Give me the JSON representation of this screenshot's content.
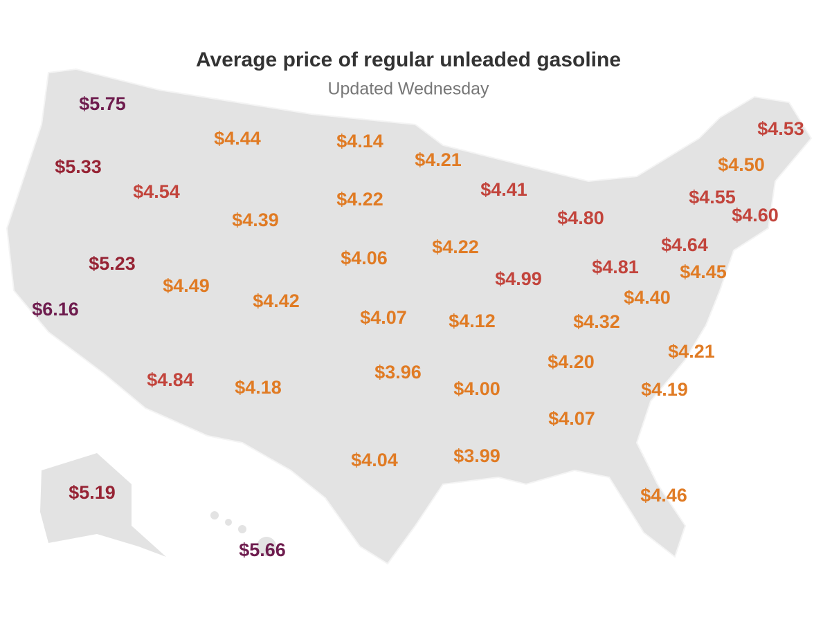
{
  "title": "Average price of regular unleaded gasoline",
  "subtitle": "Updated Wednesday",
  "labels": [
    {
      "text": "$5.75",
      "color": "#6e1c4e"
    },
    {
      "text": "$5.33",
      "color": "#962334"
    },
    {
      "text": "$4.54",
      "color": "#c2443c"
    },
    {
      "text": "$5.23",
      "color": "#962334"
    },
    {
      "text": "$6.16",
      "color": "#6e1c4e"
    },
    {
      "text": "$4.44",
      "color": "#e07b24"
    },
    {
      "text": "$4.39",
      "color": "#e07b24"
    },
    {
      "text": "$4.49",
      "color": "#e07b24"
    },
    {
      "text": "$4.42",
      "color": "#e07b24"
    },
    {
      "text": "$4.84",
      "color": "#c2443c"
    },
    {
      "text": "$4.18",
      "color": "#e07b24"
    },
    {
      "text": "$4.14",
      "color": "#e07b24"
    },
    {
      "text": "$4.22",
      "color": "#e07b24"
    },
    {
      "text": "$4.06",
      "color": "#e07b24"
    },
    {
      "text": "$4.07",
      "color": "#e07b24"
    },
    {
      "text": "$3.96",
      "color": "#e07b24"
    },
    {
      "text": "$4.04",
      "color": "#e07b24"
    },
    {
      "text": "$4.21",
      "color": "#e07b24"
    },
    {
      "text": "$4.41",
      "color": "#c2443c"
    },
    {
      "text": "$4.22",
      "color": "#e07b24"
    },
    {
      "text": "$4.99",
      "color": "#c2443c"
    },
    {
      "text": "$4.12",
      "color": "#e07b24"
    },
    {
      "text": "$4.00",
      "color": "#e07b24"
    },
    {
      "text": "$3.99",
      "color": "#e07b24"
    },
    {
      "text": "$4.80",
      "color": "#c2443c"
    },
    {
      "text": "$4.81",
      "color": "#c2443c"
    },
    {
      "text": "$4.32",
      "color": "#e07b24"
    },
    {
      "text": "$4.20",
      "color": "#e07b24"
    },
    {
      "text": "$4.07",
      "color": "#e07b24"
    },
    {
      "text": "$4.46",
      "color": "#e07b24"
    },
    {
      "text": "$4.53",
      "color": "#c2443c"
    },
    {
      "text": "$4.50",
      "color": "#e07b24"
    },
    {
      "text": "$4.55",
      "color": "#c2443c"
    },
    {
      "text": "$4.60",
      "color": "#c2443c"
    },
    {
      "text": "$4.64",
      "color": "#c2443c"
    },
    {
      "text": "$4.45",
      "color": "#e07b24"
    },
    {
      "text": "$4.40",
      "color": "#e07b24"
    },
    {
      "text": "$4.21",
      "color": "#e07b24"
    },
    {
      "text": "$4.19",
      "color": "#e07b24"
    },
    {
      "text": "$5.19",
      "color": "#962334"
    },
    {
      "text": "$5.66",
      "color": "#6e1c4e"
    }
  ]
}
